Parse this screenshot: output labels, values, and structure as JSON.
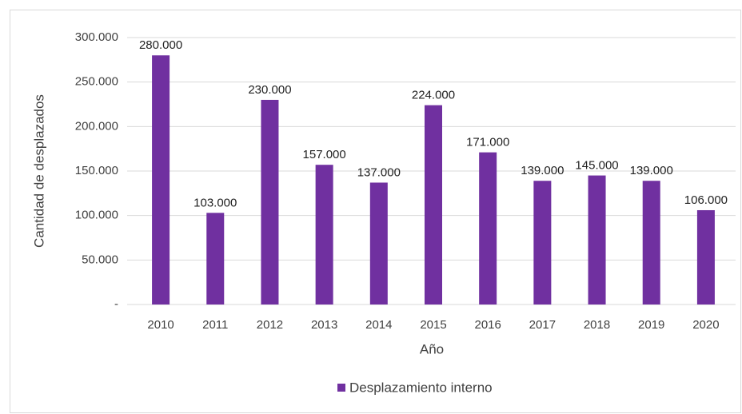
{
  "chart_data": {
    "type": "bar",
    "categories": [
      "2010",
      "2011",
      "2012",
      "2013",
      "2014",
      "2015",
      "2016",
      "2017",
      "2018",
      "2019",
      "2020"
    ],
    "series": [
      {
        "name": "Desplazamiento interno",
        "color": "#7030a0",
        "values": [
          280000,
          103000,
          230000,
          157000,
          137000,
          224000,
          171000,
          139000,
          145000,
          139000,
          106000
        ],
        "value_labels": [
          "280.000",
          "103.000",
          "230.000",
          "157.000",
          "137.000",
          "224.000",
          "171.000",
          "139.000",
          "145.000",
          "139.000",
          "106.000"
        ]
      }
    ],
    "xlabel": "Año",
    "ylabel": "Cantidad de desplazados",
    "ylim": [
      0,
      300000
    ],
    "yticks": [
      {
        "value": 0,
        "label": "-"
      },
      {
        "value": 50000,
        "label": "50.000"
      },
      {
        "value": 100000,
        "label": "100.000"
      },
      {
        "value": 150000,
        "label": "150.000"
      },
      {
        "value": 200000,
        "label": "200.000"
      },
      {
        "value": 250000,
        "label": "250.000"
      },
      {
        "value": 300000,
        "label": "300.000"
      }
    ],
    "grid": true,
    "legend": "bottom"
  }
}
